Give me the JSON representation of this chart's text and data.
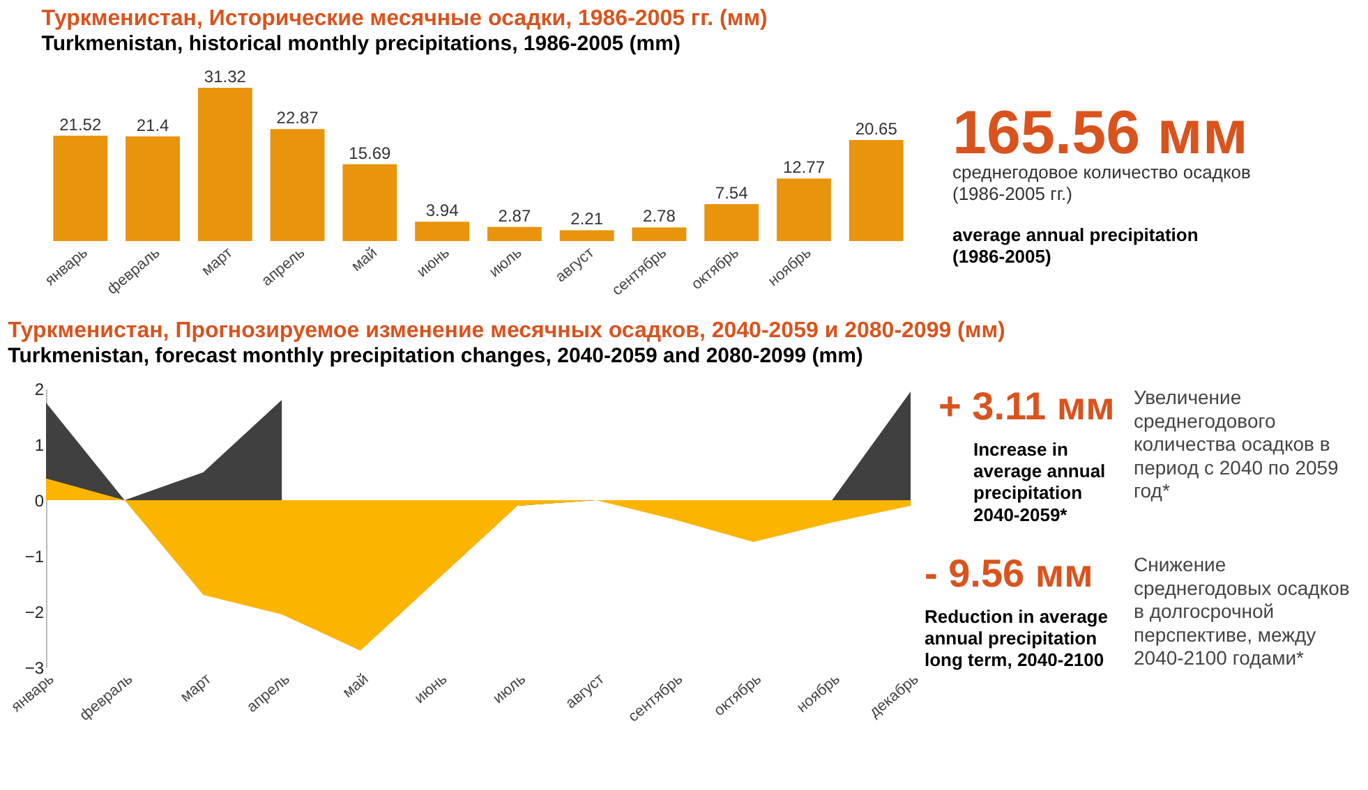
{
  "chart_data": [
    {
      "type": "bar",
      "title": "Туркменистан, Исторические месячные осадки, 1986-2005 гг. (мм)",
      "subtitle": "Turkmenistan, historical monthly precipitations, 1986-2005 (mm)",
      "categories": [
        "январь",
        "февраль",
        "март",
        "апрель",
        "май",
        "июнь",
        "июль",
        "август",
        "сентябрь",
        "октябрь",
        "ноябрь",
        null
      ],
      "values": [
        21.52,
        21.4,
        31.32,
        22.87,
        15.69,
        3.94,
        2.87,
        2.21,
        2.78,
        7.54,
        12.77,
        20.65
      ],
      "color": "#e8940c",
      "data_labels": true,
      "grid": false,
      "tick_labels": "x",
      "annotations": [
        "165.56 мм",
        "среднегодовое количество осадков (1986-2005 гг.)",
        "average annual precipitation (1986-2005)"
      ]
    },
    {
      "type": "area",
      "title": "Туркменистан, Прогнозируемое изменение месячных осадков, 2040-2059 и 2080-2099 (мм)",
      "subtitle": "Turkmenistan, forecast monthly precipitation changes, 2040-2059 and 2080-2099 (mm)",
      "categories": [
        "январь",
        "февраль",
        "март",
        "апрель",
        "май",
        "июнь",
        "июль",
        "август",
        "сентябрь",
        "октябрь",
        "ноябрь",
        "декабрь"
      ],
      "series": [
        {
          "color": "#404040",
          "values": [
            1.75,
            0,
            0.5,
            1.8,
            null,
            null,
            -0.1,
            0,
            null,
            null,
            0,
            1.95
          ]
        },
        {
          "color": "#fbb400",
          "values": [
            0.39,
            0,
            -1.7,
            -2.05,
            -2.7,
            -1.4,
            -0.1,
            0,
            -0.35,
            -0.75,
            -0.4,
            -0.1
          ]
        }
      ],
      "ylim": [
        -3,
        2
      ],
      "yticks": [
        -3,
        -2,
        -1,
        0,
        1,
        2
      ],
      "grid": false,
      "annotations": [
        "+ 3.11 мм",
        "Increase in average annual precipitation 2040-2059*",
        "Увеличение среднегодового количества осадков в период с 2040 по 2059 год*",
        "- 9.56 мм",
        "Reduction in average annual precipitation long term, 2040-2100",
        "Снижение среднегодовых осадков в долгосрочной перспективе, между 2040-2100 годами*"
      ]
    }
  ]
}
